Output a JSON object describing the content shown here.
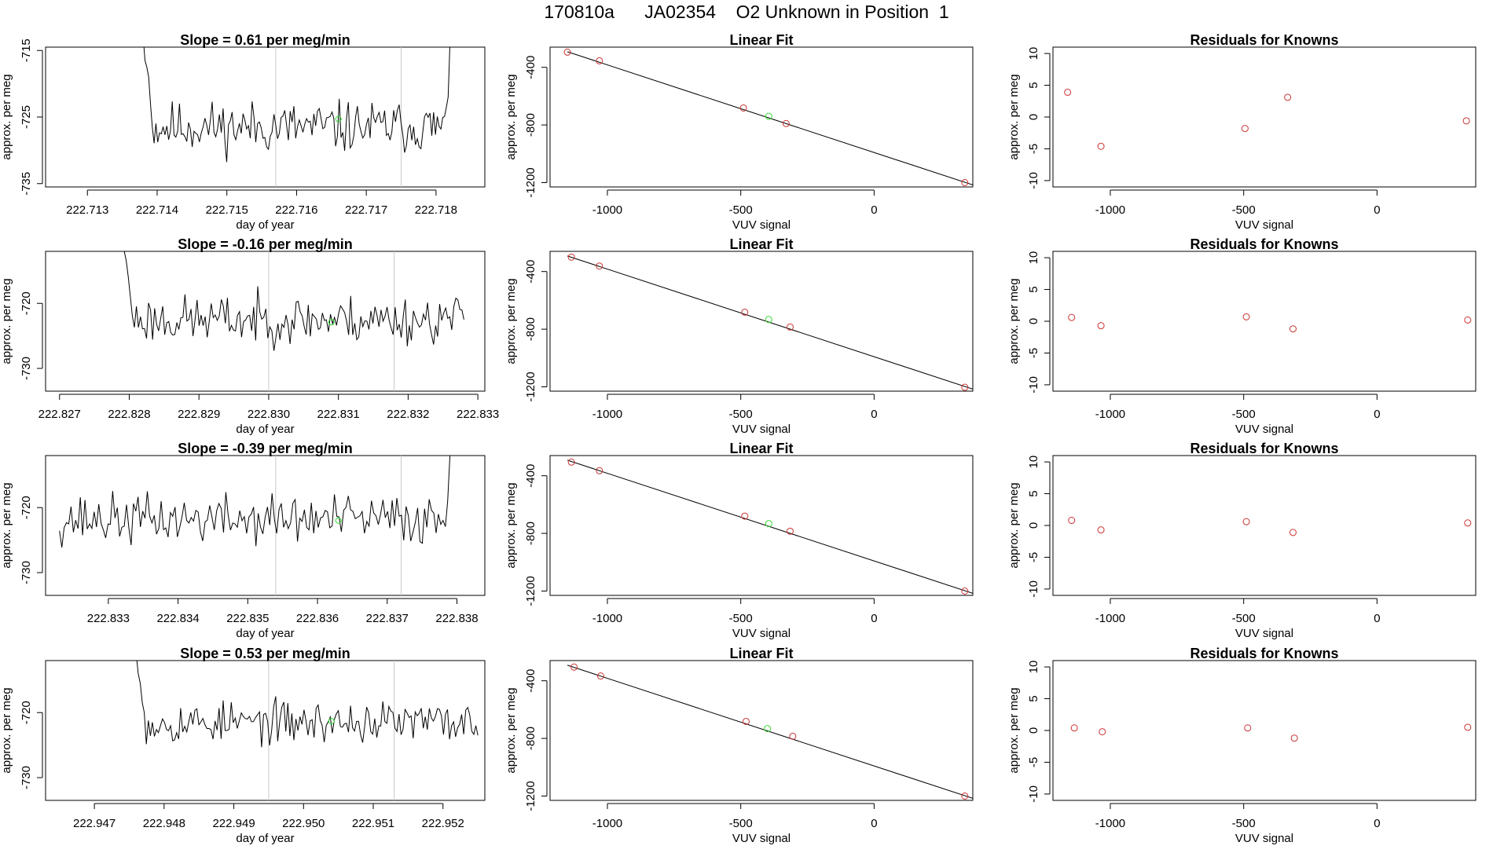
{
  "header": {
    "title": "170810a      JA02354    O2 Unknown in Position  1"
  },
  "colors": {
    "axis": "#000000",
    "trace": "#000000",
    "cursor_lines": "#c8c8c8",
    "known_points": "#cc3333",
    "unknown_point": "#33dd33"
  },
  "chart_data": [
    {
      "type": "line",
      "title": "Slope =  0.61  per meg/min",
      "xlabel": "day of year",
      "ylabel": "approx. per meg",
      "xlim": [
        222.7124,
        222.7187
      ],
      "ylim": [
        -735.5,
        -714.5
      ],
      "xticks": [
        "222.713",
        "222.714",
        "222.715",
        "222.716",
        "222.717",
        "222.718"
      ],
      "yticks": [
        "-715",
        "-725",
        "-735"
      ],
      "vlines": [
        222.7157,
        222.7175
      ],
      "trace_start": 222.7138,
      "trace_end": 222.7182,
      "trace_seed": 11,
      "trace_level": -726.5,
      "trace_amp": 2.4,
      "head_values": [
        -713,
        -716.5,
        -717.5,
        -719,
        -723,
        -726.5
      ],
      "tail_values": [
        -722,
        -714
      ],
      "special_point": {
        "x": 222.7166,
        "y": -725.3
      }
    },
    {
      "type": "scatter",
      "title": "Linear Fit",
      "xlabel": "VUV signal",
      "ylabel": "approx. per meg",
      "xlim": [
        -1215,
        370
      ],
      "ylim": [
        -1230,
        -260
      ],
      "xticks": [
        "-1000",
        "-500",
        "0"
      ],
      "yticks": [
        "-400",
        "-800",
        "-1200"
      ],
      "known_points": {
        "x": [
          -1150,
          -1030,
          -490,
          -330,
          340
        ],
        "y": [
          -295,
          -355,
          -682,
          -790,
          -1200
        ]
      },
      "unknown_point": {
        "x": -395,
        "y": -740
      },
      "fit_line": {
        "x": [
          -1150,
          370
        ],
        "y": [
          -292,
          -1216
        ]
      }
    },
    {
      "type": "scatter",
      "title": "Residuals for Knowns",
      "xlabel": "VUV signal",
      "ylabel": "approx. per meg",
      "xlim": [
        -1215,
        370
      ],
      "ylim": [
        -11,
        11
      ],
      "xticks": [
        "-1000",
        "-500",
        "0"
      ],
      "yticks": [
        "10",
        "5",
        "0",
        "-5",
        "-10"
      ],
      "known_points": {
        "x": [
          -1160,
          -1035,
          -495,
          -335,
          335
        ],
        "y": [
          3.9,
          -4.6,
          -1.8,
          3.1,
          -0.6
        ]
      }
    },
    {
      "type": "line",
      "title": "Slope =  -0.16  per meg/min",
      "xlabel": "day of year",
      "ylabel": "approx. per meg",
      "xlim": [
        222.8268,
        222.8331
      ],
      "ylim": [
        -733.5,
        -712
      ],
      "xticks": [
        "222.827",
        "222.828",
        "222.829",
        "222.830",
        "222.831",
        "222.832",
        "222.833"
      ],
      "yticks": [
        "-720",
        "-730"
      ],
      "vlines": [
        222.83,
        222.8318
      ],
      "trace_start": 222.8279,
      "trace_end": 222.8328,
      "trace_seed": 23,
      "trace_level": -722.5,
      "trace_amp": 2.3,
      "head_values": [
        -710,
        -712,
        -713.5,
        -716,
        -719,
        -722
      ],
      "tail_values": [
        -721,
        -722.5
      ],
      "special_point": {
        "x": 222.8309,
        "y": -722.9
      }
    },
    {
      "type": "scatter",
      "title": "Linear Fit",
      "xlabel": "VUV signal",
      "ylabel": "approx. per meg",
      "xlim": [
        -1215,
        370
      ],
      "ylim": [
        -1230,
        -260
      ],
      "xticks": [
        "-1000",
        "-500",
        "0"
      ],
      "yticks": [
        "-400",
        "-800",
        "-1200"
      ],
      "known_points": {
        "x": [
          -1135,
          -1030,
          -485,
          -315,
          340
        ],
        "y": [
          -300,
          -362,
          -682,
          -785,
          -1203
        ]
      },
      "unknown_point": {
        "x": -395,
        "y": -733
      },
      "fit_line": {
        "x": [
          -1150,
          370
        ],
        "y": [
          -292,
          -1216
        ]
      }
    },
    {
      "type": "scatter",
      "title": "Residuals for Knowns",
      "xlabel": "VUV signal",
      "ylabel": "approx. per meg",
      "xlim": [
        -1215,
        370
      ],
      "ylim": [
        -11,
        11
      ],
      "xticks": [
        "-1000",
        "-500",
        "0"
      ],
      "yticks": [
        "10",
        "5",
        "0",
        "-5",
        "-10"
      ],
      "known_points": {
        "x": [
          -1145,
          -1035,
          -490,
          -315,
          340
        ],
        "y": [
          0.6,
          -0.7,
          0.7,
          -1.2,
          0.2
        ]
      }
    },
    {
      "type": "line",
      "title": "Slope =  -0.39  per meg/min",
      "xlabel": "day of year",
      "ylabel": "approx. per meg",
      "xlim": [
        222.8321,
        222.8384
      ],
      "ylim": [
        -733.5,
        -712
      ],
      "xticks": [
        "222.833",
        "222.834",
        "222.835",
        "222.836",
        "222.837",
        "222.838"
      ],
      "yticks": [
        "-720",
        "-730"
      ],
      "vlines": [
        222.8354,
        222.8372
      ],
      "trace_start": 222.8323,
      "trace_end": 222.8379,
      "trace_seed": 37,
      "trace_level": -721.8,
      "trace_amp": 2.4,
      "head_values": [],
      "tail_values": [
        -719,
        -712
      ],
      "special_point": {
        "x": 222.8363,
        "y": -722
      }
    },
    {
      "type": "scatter",
      "title": "Linear Fit",
      "xlabel": "VUV signal",
      "ylabel": "approx. per meg",
      "xlim": [
        -1215,
        370
      ],
      "ylim": [
        -1230,
        -260
      ],
      "xticks": [
        "-1000",
        "-500",
        "0"
      ],
      "yticks": [
        "-400",
        "-800",
        "-1200"
      ],
      "known_points": {
        "x": [
          -1135,
          -1030,
          -485,
          -315,
          340
        ],
        "y": [
          -305,
          -365,
          -680,
          -785,
          -1200
        ]
      },
      "unknown_point": {
        "x": -395,
        "y": -732
      },
      "fit_line": {
        "x": [
          -1150,
          370
        ],
        "y": [
          -292,
          -1216
        ]
      }
    },
    {
      "type": "scatter",
      "title": "Residuals for Knowns",
      "xlabel": "VUV signal",
      "ylabel": "approx. per meg",
      "xlim": [
        -1215,
        370
      ],
      "ylim": [
        -11,
        11
      ],
      "xticks": [
        "-1000",
        "-500",
        "0"
      ],
      "yticks": [
        "10",
        "5",
        "0",
        "-5",
        "-10"
      ],
      "known_points": {
        "x": [
          -1145,
          -1035,
          -490,
          -315,
          340
        ],
        "y": [
          0.8,
          -0.7,
          0.6,
          -1.1,
          0.4
        ]
      }
    },
    {
      "type": "line",
      "title": "Slope =  0.53  per meg/min",
      "xlabel": "day of year",
      "ylabel": "approx. per meg",
      "xlim": [
        222.9463,
        222.9526
      ],
      "ylim": [
        -733.5,
        -712
      ],
      "xticks": [
        "222.947",
        "222.948",
        "222.949",
        "222.950",
        "222.951",
        "222.952"
      ],
      "yticks": [
        "-720",
        "-730"
      ],
      "vlines": [
        222.9495,
        222.9513
      ],
      "trace_start": 222.9476,
      "trace_end": 222.9525,
      "trace_seed": 53,
      "trace_level": -721.5,
      "trace_amp": 2.0,
      "head_values": [
        -711,
        -714,
        -715.5,
        -718.5,
        -720
      ],
      "tail_values": [
        -722,
        -723.5
      ],
      "special_point": {
        "x": 222.9504,
        "y": -721.3
      }
    },
    {
      "type": "scatter",
      "title": "Linear Fit",
      "xlabel": "VUV signal",
      "ylabel": "approx. per meg",
      "xlim": [
        -1215,
        370
      ],
      "ylim": [
        -1230,
        -260
      ],
      "xticks": [
        "-1000",
        "-500",
        "0"
      ],
      "yticks": [
        "-400",
        "-800",
        "-1200"
      ],
      "known_points": {
        "x": [
          -1125,
          -1025,
          -480,
          -305,
          340
        ],
        "y": [
          -305,
          -367,
          -682,
          -785,
          -1200
        ]
      },
      "unknown_point": {
        "x": -400,
        "y": -732
      },
      "fit_line": {
        "x": [
          -1150,
          370
        ],
        "y": [
          -292,
          -1216
        ]
      }
    },
    {
      "type": "scatter",
      "title": "Residuals for Knowns",
      "xlabel": "VUV signal",
      "ylabel": "approx. per meg",
      "xlim": [
        -1215,
        370
      ],
      "ylim": [
        -11,
        11
      ],
      "xticks": [
        "-1000",
        "-500",
        "0"
      ],
      "yticks": [
        "10",
        "5",
        "0",
        "-5",
        "-10"
      ],
      "known_points": {
        "x": [
          -1135,
          -1030,
          -485,
          -310,
          340
        ],
        "y": [
          0.4,
          -0.2,
          0.4,
          -1.2,
          0.5
        ]
      }
    }
  ]
}
